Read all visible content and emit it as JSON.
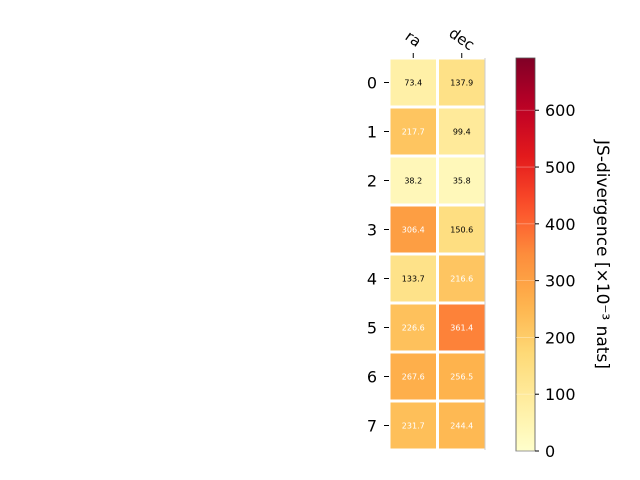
{
  "chart_data": {
    "type": "heatmap",
    "columns": [
      "ra",
      "dec"
    ],
    "rows": [
      "0",
      "1",
      "2",
      "3",
      "4",
      "5",
      "6",
      "7"
    ],
    "values": [
      [
        73.4,
        137.9
      ],
      [
        217.7,
        99.4
      ],
      [
        38.2,
        35.8
      ],
      [
        306.4,
        150.6
      ],
      [
        133.7,
        216.6
      ],
      [
        226.6,
        361.4
      ],
      [
        267.6,
        256.5
      ],
      [
        231.7,
        244.4
      ]
    ],
    "value_labels": [
      [
        "73.4",
        "137.9"
      ],
      [
        "217.7",
        "99.4"
      ],
      [
        "38.2",
        "35.8"
      ],
      [
        "306.4",
        "150.6"
      ],
      [
        "133.7",
        "216.6"
      ],
      [
        "226.6",
        "361.4"
      ],
      [
        "267.6",
        "256.5"
      ],
      [
        "231.7",
        "244.4"
      ]
    ],
    "colorbar": {
      "label": "JS-divergence [×10⁻³ nats]",
      "vmin": 0,
      "vmax": 692,
      "ticks": [
        0,
        100,
        200,
        300,
        400,
        500,
        600
      ],
      "tick_labels": [
        "0",
        "100",
        "200",
        "300",
        "400",
        "500",
        "600"
      ],
      "colormap": "YlOrRd"
    },
    "label_color_threshold": 200,
    "colors": {
      "light_text": "#ffffff",
      "dark_text": "#000000",
      "cell_border": "#ffffff"
    }
  }
}
